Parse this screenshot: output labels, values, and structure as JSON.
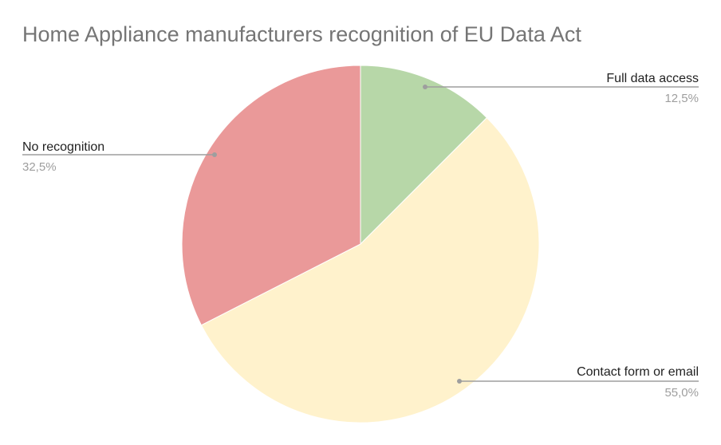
{
  "chart_data": {
    "type": "pie",
    "title": "Home Appliance manufacturers recognition of EU Data Act",
    "slices": [
      {
        "label": "Full data access",
        "value": 12.5,
        "display": "12,5%",
        "color": "#b7d7a8"
      },
      {
        "label": "Contact form or email",
        "value": 55.0,
        "display": "55,0%",
        "color": "#fff2cc"
      },
      {
        "label": "No recognition",
        "value": 32.5,
        "display": "32,5%",
        "color": "#ea9999"
      }
    ],
    "start_angle": "12 o'clock",
    "direction": "clockwise",
    "legend": "none",
    "label_color": "#222222",
    "value_color": "#9e9e9e",
    "leader_color": "#9e9e9e"
  }
}
